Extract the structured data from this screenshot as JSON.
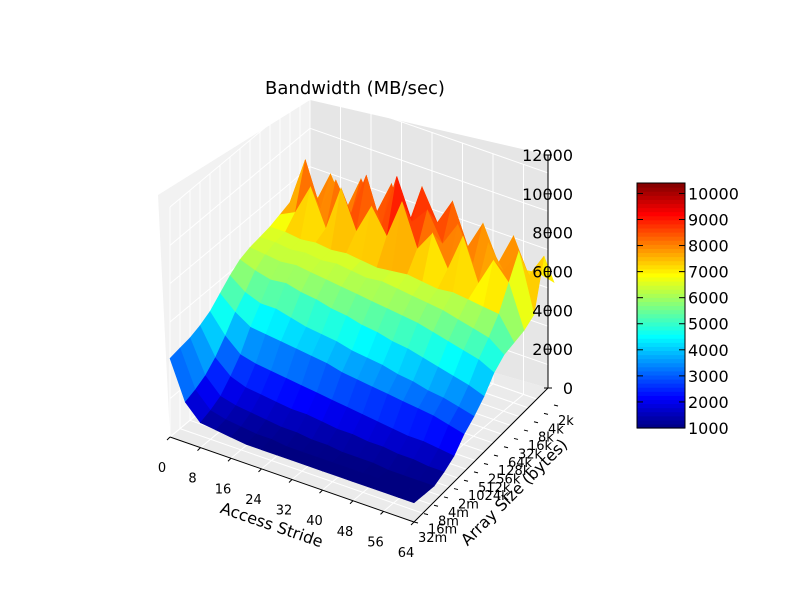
{
  "chart_data": {
    "type": "surface3d",
    "title": "Bandwidth (MB/sec)",
    "xlabel": "Access Stride",
    "ylabel": "Array Size (bytes)",
    "zlabel": "",
    "x_ticks": [
      "0",
      "8",
      "16",
      "24",
      "32",
      "40",
      "48",
      "56",
      "64"
    ],
    "x_range": [
      0,
      64
    ],
    "y_ticks": [
      "2k",
      "4k",
      "8k",
      "16k",
      "32k",
      "64k",
      "128k",
      "256k",
      "512k",
      "1024k",
      "2m",
      "4m",
      "8m",
      "16m",
      "32m"
    ],
    "z_ticks": [
      "0",
      "2000",
      "4000",
      "6000",
      "8000",
      "10000",
      "12000"
    ],
    "z_range": [
      0,
      12000
    ],
    "colorbar": {
      "ticks": [
        "1000",
        "2000",
        "3000",
        "4000",
        "5000",
        "6000",
        "7000",
        "8000",
        "9000",
        "10000"
      ],
      "range": [
        1000,
        10400
      ],
      "colormap": "jet"
    },
    "grid": true,
    "surface_description_levels": {
      "strides": [
        0,
        4,
        8,
        12,
        16,
        20,
        24,
        28,
        32,
        36,
        40,
        44,
        48,
        52,
        56,
        60,
        64
      ],
      "rows": [
        [
          6500,
          6600,
          6400,
          6500,
          6600,
          6500,
          6400,
          6600,
          6500,
          6400,
          6500,
          6600,
          6500,
          6400,
          6500,
          6600,
          6400
        ],
        [
          7600,
          6800,
          8600,
          7000,
          8900,
          7400,
          9200,
          7100,
          9600,
          8000,
          9400,
          7300,
          8800,
          7000,
          8700,
          6900,
          8200
        ],
        [
          7000,
          9500,
          7200,
          9000,
          7500,
          9800,
          7400,
          10300,
          8200,
          9100,
          7600,
          8900,
          7100,
          8500,
          7300,
          8600,
          5600
        ],
        [
          6800,
          7200,
          8800,
          6900,
          9300,
          7300,
          8900,
          7600,
          9700,
          7500,
          8600,
          7000,
          9000,
          6800,
          8300,
          7400,
          5200
        ],
        [
          6600,
          6600,
          6500,
          6600,
          6500,
          6600,
          6500,
          6400,
          6500,
          6600,
          6500,
          6400,
          6500,
          6400,
          6300,
          6200,
          5000
        ],
        [
          6500,
          6500,
          6400,
          6500,
          6400,
          6500,
          6400,
          6300,
          6400,
          6300,
          6200,
          6100,
          6000,
          5800,
          5600,
          5400,
          4800
        ],
        [
          6400,
          6300,
          6200,
          6300,
          6200,
          6100,
          6000,
          5900,
          5800,
          5700,
          5600,
          5500,
          5300,
          5100,
          4900,
          4700,
          4300
        ],
        [
          6200,
          5900,
          5700,
          5800,
          5600,
          5500,
          5300,
          5200,
          5000,
          4900,
          4700,
          4600,
          4400,
          4200,
          4000,
          3800,
          3500
        ],
        [
          5800,
          5200,
          4900,
          4900,
          4700,
          4500,
          4400,
          4300,
          4100,
          4000,
          3900,
          3700,
          3600,
          3400,
          3300,
          3100,
          2900
        ],
        [
          5300,
          4600,
          4100,
          4000,
          3900,
          3800,
          3700,
          3600,
          3400,
          3300,
          3200,
          3100,
          3000,
          2900,
          2800,
          2600,
          2400
        ],
        [
          4800,
          3800,
          3100,
          2900,
          2800,
          2700,
          2600,
          2500,
          2400,
          2300,
          2200,
          2100,
          2000,
          1900,
          1900,
          1800,
          1700
        ],
        [
          4500,
          3100,
          2400,
          2100,
          2000,
          1900,
          1800,
          1800,
          1700,
          1600,
          1600,
          1500,
          1500,
          1400,
          1400,
          1300,
          1300
        ],
        [
          4300,
          2600,
          1800,
          1600,
          1500,
          1400,
          1300,
          1300,
          1200,
          1200,
          1100,
          1100,
          1100,
          1000,
          1000,
          1000,
          1000
        ],
        [
          4200,
          2300,
          1500,
          1300,
          1200,
          1100,
          1100,
          1000,
          1000,
          1000,
          1000,
          1000,
          1000,
          1000,
          1000,
          1000,
          1000
        ],
        [
          4100,
          2100,
          1300,
          1200,
          1100,
          1000,
          1000,
          1000,
          1000,
          1000,
          1000,
          1000,
          1000,
          1000,
          1000,
          1000,
          1000
        ]
      ]
    }
  }
}
